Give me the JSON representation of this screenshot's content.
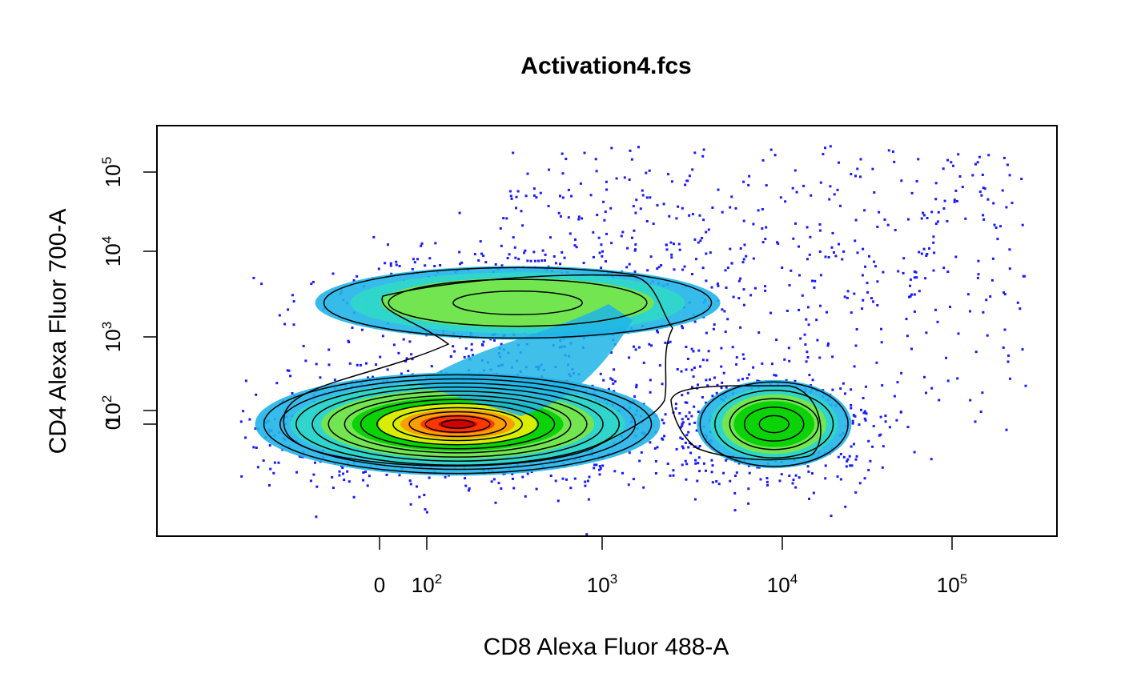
{
  "chart_data": {
    "type": "scatter",
    "subtype": "density-contour",
    "title": "Activation4.fcs",
    "xlabel": "CD8 Alexa Fluor 488-A",
    "ylabel": "CD4 Alexa Fluor 700-A",
    "x_scale": "biexponential",
    "y_scale": "biexponential",
    "grid": false,
    "legend": "none",
    "point_color": "#1a1aff",
    "density_colors": [
      "#1a1aff",
      "#20b4e8",
      "#30d8c8",
      "#7ee83c",
      "#00d000",
      "#f0f000",
      "#ff9a00",
      "#ff3000",
      "#d00000"
    ],
    "contour_color": "#000000",
    "x_ticks": [
      {
        "value": 0,
        "base": "0",
        "exp": ""
      },
      {
        "value": 100,
        "base": "10",
        "exp": "2"
      },
      {
        "value": 1000,
        "base": "10",
        "exp": "3"
      },
      {
        "value": 10000,
        "base": "10",
        "exp": "4"
      },
      {
        "value": 100000,
        "base": "10",
        "exp": "5"
      }
    ],
    "y_ticks": [
      {
        "value": 0,
        "base": "0",
        "exp": ""
      },
      {
        "value": 100,
        "base": "10",
        "exp": "2"
      },
      {
        "value": 1000,
        "base": "10",
        "exp": "3"
      },
      {
        "value": 10000,
        "base": "10",
        "exp": "4"
      },
      {
        "value": 100000,
        "base": "10",
        "exp": "5"
      }
    ],
    "populations": [
      {
        "center_x": 150,
        "center_y": 0,
        "relative_density": 1.0
      },
      {
        "center_x": 330,
        "center_y": 2500,
        "relative_density": 0.45
      },
      {
        "center_x": 9000,
        "center_y": 0,
        "relative_density": 0.5
      }
    ]
  }
}
